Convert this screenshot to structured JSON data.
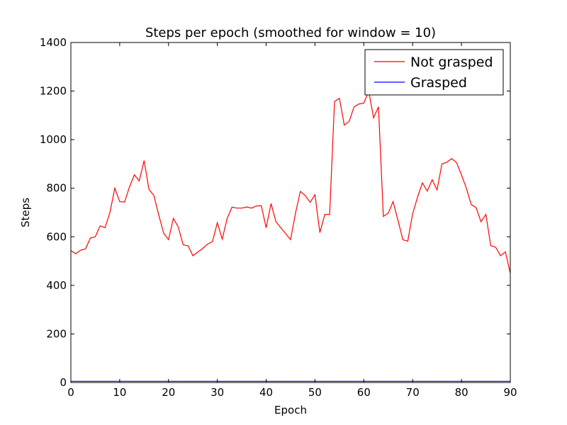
{
  "chart_data": {
    "type": "line",
    "title": "Steps per epoch (smoothed for window = 10)",
    "xlabel": "Epoch",
    "ylabel": "Steps",
    "xlim": [
      0,
      90
    ],
    "ylim": [
      0,
      1400
    ],
    "xticks": [
      0,
      10,
      20,
      30,
      40,
      50,
      60,
      70,
      80,
      90
    ],
    "yticks": [
      0,
      200,
      400,
      600,
      800,
      1000,
      1200,
      1400
    ],
    "grid": false,
    "legend_position": "top-right",
    "series": [
      {
        "name": "Not grasped",
        "color": "#ff0000",
        "x": [
          0,
          1,
          2,
          3,
          4,
          5,
          6,
          7,
          8,
          9,
          10,
          11,
          12,
          13,
          14,
          15,
          16,
          17,
          18,
          19,
          20,
          21,
          22,
          23,
          24,
          25,
          26,
          27,
          28,
          29,
          30,
          31,
          32,
          33,
          34,
          35,
          36,
          37,
          38,
          39,
          40,
          41,
          42,
          43,
          44,
          45,
          46,
          47,
          48,
          49,
          50,
          51,
          52,
          53,
          54,
          55,
          56,
          57,
          58,
          59,
          60,
          61,
          62,
          63,
          64,
          65,
          66,
          67,
          68,
          69,
          70,
          71,
          72,
          73,
          74,
          75,
          76,
          77,
          78,
          79,
          80,
          81,
          82,
          83,
          84,
          85,
          86,
          87,
          88,
          89,
          90
        ],
        "y": [
          543,
          530,
          545,
          550,
          595,
          600,
          645,
          637,
          700,
          800,
          745,
          743,
          805,
          855,
          830,
          914,
          795,
          770,
          690,
          615,
          588,
          676,
          640,
          567,
          563,
          522,
          537,
          552,
          570,
          580,
          658,
          590,
          675,
          722,
          718,
          718,
          723,
          718,
          727,
          728,
          637,
          737,
          662,
          637,
          613,
          588,
          697,
          787,
          770,
          742,
          773,
          617,
          692,
          692,
          1157,
          1170,
          1060,
          1075,
          1135,
          1147,
          1150,
          1200,
          1090,
          1135,
          684,
          697,
          745,
          667,
          588,
          582,
          695,
          763,
          822,
          788,
          835,
          793,
          900,
          907,
          922,
          905,
          855,
          800,
          733,
          720,
          662,
          692,
          563,
          557,
          522,
          538,
          450
        ]
      },
      {
        "name": "Grasped",
        "color": "#0000ff",
        "x": [
          0,
          90
        ],
        "y": [
          5,
          5
        ]
      }
    ]
  }
}
